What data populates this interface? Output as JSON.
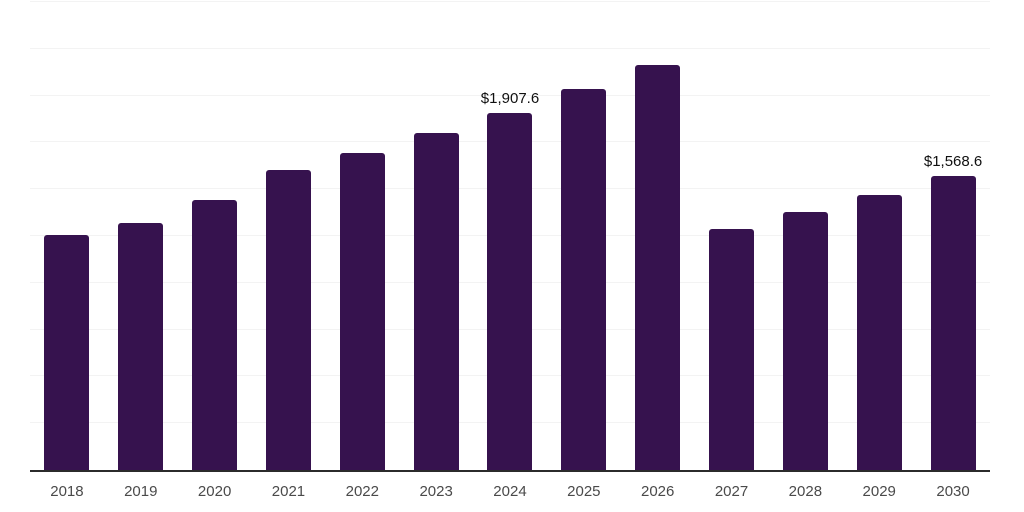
{
  "chart_data": {
    "type": "bar",
    "title": "",
    "xlabel": "",
    "ylabel": "",
    "categories": [
      "2018",
      "2019",
      "2020",
      "2021",
      "2022",
      "2023",
      "2024",
      "2025",
      "2026",
      "2027",
      "2028",
      "2029",
      "2030"
    ],
    "values": [
      1258,
      1322,
      1440,
      1600,
      1696,
      1802,
      1907.6,
      2034,
      2162,
      1285,
      1377,
      1470,
      1568.6
    ],
    "bar_labels": [
      "",
      "",
      "",
      "",
      "",
      "",
      "$1,907.6",
      "",
      "",
      "",
      "",
      "",
      "$1,568.6"
    ],
    "ylim": [
      0,
      2500
    ],
    "gridline_interval": 250,
    "grid": true,
    "legend_position": "none",
    "bar_color": "#36124E",
    "axis_line_color": "#2b2b2b",
    "gridline_color": "#f3f3f3",
    "tick_label_color": "#4a4a4a",
    "data_label_color": "#101010"
  }
}
